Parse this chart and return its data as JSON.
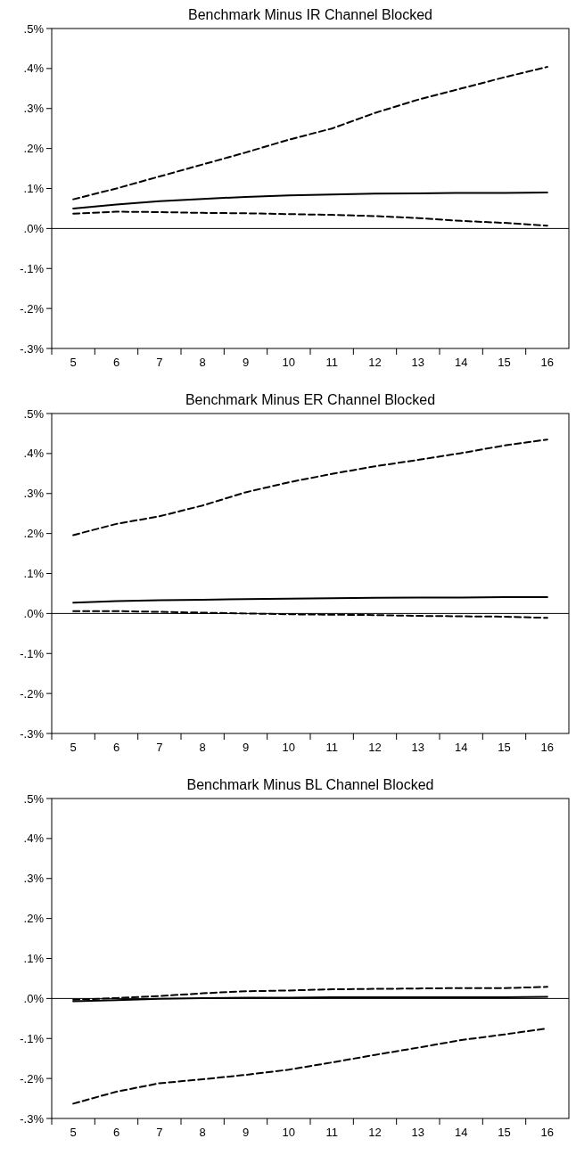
{
  "chart_data": [
    {
      "type": "line",
      "title": "Benchmark Minus IR Channel Blocked",
      "categories": [
        "5",
        "6",
        "7",
        "8",
        "9",
        "10",
        "11",
        "12",
        "13",
        "14",
        "15",
        "16"
      ],
      "ylim": [
        -0.3,
        0.5
      ],
      "yticks": [
        {
          "value": 0.5,
          "label": ".5%"
        },
        {
          "value": 0.4,
          "label": ".4%"
        },
        {
          "value": 0.3,
          "label": ".3%"
        },
        {
          "value": 0.2,
          "label": ".2%"
        },
        {
          "value": 0.1,
          "label": ".1%"
        },
        {
          "value": 0,
          "label": ".0%"
        },
        {
          "value": -0.1,
          "label": "-.1%"
        },
        {
          "value": -0.2,
          "label": "-.2%"
        },
        {
          "value": -0.3,
          "label": "-.3%"
        }
      ],
      "ref_lines": [
        {
          "axis": "y",
          "value": 0,
          "color": "#000000"
        }
      ],
      "series": [
        {
          "color": "#000000",
          "line_style": "dashed",
          "values": [
            0.073,
            0.1,
            0.13,
            0.16,
            0.19,
            0.222,
            0.25,
            0.289,
            0.322,
            0.35,
            0.378,
            0.404
          ]
        },
        {
          "color": "#000000",
          "line_style": "solid",
          "values": [
            0.05,
            0.06,
            0.068,
            0.074,
            0.079,
            0.083,
            0.085,
            0.087,
            0.088,
            0.089,
            0.089,
            0.09
          ]
        },
        {
          "color": "#000000",
          "line_style": "dashed",
          "values": [
            0.037,
            0.042,
            0.041,
            0.039,
            0.038,
            0.036,
            0.034,
            0.031,
            0.026,
            0.019,
            0.014,
            0.007
          ]
        }
      ]
    },
    {
      "type": "line",
      "title": "Benchmark Minus ER Channel Blocked",
      "categories": [
        "5",
        "6",
        "7",
        "8",
        "9",
        "10",
        "11",
        "12",
        "13",
        "14",
        "15",
        "16"
      ],
      "ylim": [
        -0.3,
        0.5
      ],
      "yticks": [
        {
          "value": 0.5,
          "label": ".5%"
        },
        {
          "value": 0.4,
          "label": ".4%"
        },
        {
          "value": 0.3,
          "label": ".3%"
        },
        {
          "value": 0.2,
          "label": ".2%"
        },
        {
          "value": 0.1,
          "label": ".1%"
        },
        {
          "value": 0,
          "label": ".0%"
        },
        {
          "value": -0.1,
          "label": "-.1%"
        },
        {
          "value": -0.2,
          "label": "-.2%"
        },
        {
          "value": -0.3,
          "label": "-.3%"
        }
      ],
      "ref_lines": [
        {
          "axis": "y",
          "value": 0,
          "color": "#000000"
        }
      ],
      "series": [
        {
          "color": "#000000",
          "line_style": "dashed",
          "values": [
            0.196,
            0.224,
            0.243,
            0.27,
            0.303,
            0.328,
            0.349,
            0.368,
            0.384,
            0.401,
            0.42,
            0.435
          ]
        },
        {
          "color": "#000000",
          "line_style": "solid",
          "values": [
            0.027,
            0.031,
            0.033,
            0.034,
            0.036,
            0.037,
            0.038,
            0.039,
            0.04,
            0.04,
            0.041,
            0.041
          ]
        },
        {
          "color": "#000000",
          "line_style": "dashed",
          "values": [
            0.006,
            0.006,
            0.004,
            0.002,
            0.0,
            -0.002,
            -0.003,
            -0.004,
            -0.006,
            -0.007,
            -0.008,
            -0.011
          ]
        }
      ]
    },
    {
      "type": "line",
      "title": "Benchmark Minus BL Channel Blocked",
      "categories": [
        "5",
        "6",
        "7",
        "8",
        "9",
        "10",
        "11",
        "12",
        "13",
        "14",
        "15",
        "16"
      ],
      "ylim": [
        -0.3,
        0.5
      ],
      "yticks": [
        {
          "value": 0.5,
          "label": ".5%"
        },
        {
          "value": 0.4,
          "label": ".4%"
        },
        {
          "value": 0.3,
          "label": ".3%"
        },
        {
          "value": 0.2,
          "label": ".2%"
        },
        {
          "value": 0.1,
          "label": ".1%"
        },
        {
          "value": 0,
          "label": ".0%"
        },
        {
          "value": -0.1,
          "label": "-.1%"
        },
        {
          "value": -0.2,
          "label": "-.2%"
        },
        {
          "value": -0.3,
          "label": "-.3%"
        }
      ],
      "ref_lines": [
        {
          "axis": "y",
          "value": 0,
          "color": "#000000"
        }
      ],
      "series": [
        {
          "color": "#000000",
          "line_style": "dashed",
          "values": [
            -0.003,
            0.001,
            0.006,
            0.013,
            0.018,
            0.02,
            0.023,
            0.024,
            0.025,
            0.026,
            0.026,
            0.029
          ]
        },
        {
          "color": "#000000",
          "line_style": "solid",
          "values": [
            -0.007,
            -0.004,
            -0.001,
            0.001,
            0.002,
            0.002,
            0.003,
            0.003,
            0.003,
            0.003,
            0.003,
            0.004
          ]
        },
        {
          "color": "#000000",
          "line_style": "dashed",
          "values": [
            -0.263,
            -0.233,
            -0.212,
            -0.202,
            -0.191,
            -0.178,
            -0.16,
            -0.141,
            -0.123,
            -0.104,
            -0.09,
            -0.075
          ]
        }
      ]
    }
  ]
}
